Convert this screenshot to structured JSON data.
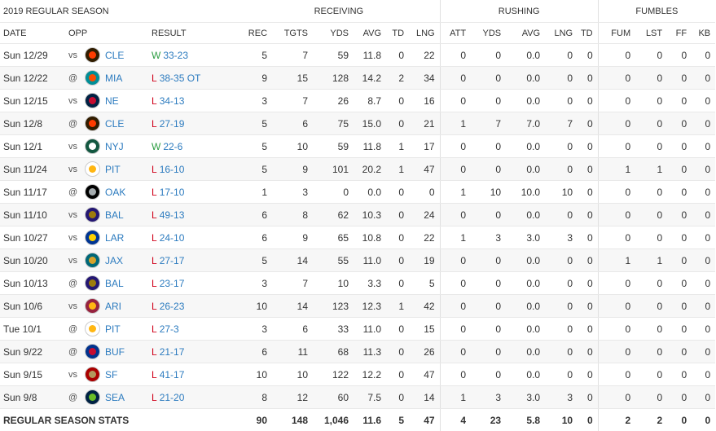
{
  "title": "2019 REGULAR SEASON",
  "groups": {
    "receiving": "RECEIVING",
    "rushing": "RUSHING",
    "fumbles": "FUMBLES"
  },
  "headers": {
    "date": "DATE",
    "opp": "OPP",
    "result": "RESULT",
    "rec": "REC",
    "tgts": "TGTS",
    "rec_yds": "YDS",
    "rec_avg": "AVG",
    "rec_td": "TD",
    "rec_lng": "LNG",
    "att": "ATT",
    "rush_yds": "YDS",
    "rush_avg": "AVG",
    "rush_lng": "LNG",
    "rush_td": "TD",
    "fum": "FUM",
    "lst": "LST",
    "ff": "FF",
    "kb": "KB"
  },
  "colors": {
    "win": "#2f9e44",
    "loss": "#d0021b",
    "link": "#2c7bbf"
  },
  "rows": [
    {
      "date": "Sun 12/29",
      "loc": "vs",
      "opp": "CLE",
      "logo_icon": "browns-logo-icon",
      "c1": "#311d00",
      "c2": "#ff3c00",
      "wl": "W",
      "score": "33-23",
      "rec": "5",
      "tgts": "7",
      "rec_yds": "59",
      "rec_avg": "11.8",
      "rec_td": "0",
      "rec_lng": "22",
      "att": "0",
      "rush_yds": "0",
      "rush_avg": "0.0",
      "rush_lng": "0",
      "rush_td": "0",
      "fum": "0",
      "lst": "0",
      "ff": "0",
      "kb": "0"
    },
    {
      "date": "Sun 12/22",
      "loc": "@",
      "opp": "MIA",
      "logo_icon": "dolphins-logo-icon",
      "c1": "#008e97",
      "c2": "#fc4c02",
      "wl": "L",
      "score": "38-35 OT",
      "rec": "9",
      "tgts": "15",
      "rec_yds": "128",
      "rec_avg": "14.2",
      "rec_td": "2",
      "rec_lng": "34",
      "att": "0",
      "rush_yds": "0",
      "rush_avg": "0.0",
      "rush_lng": "0",
      "rush_td": "0",
      "fum": "0",
      "lst": "0",
      "ff": "0",
      "kb": "0"
    },
    {
      "date": "Sun 12/15",
      "loc": "vs",
      "opp": "NE",
      "logo_icon": "patriots-logo-icon",
      "c1": "#002244",
      "c2": "#c60c30",
      "wl": "L",
      "score": "34-13",
      "rec": "3",
      "tgts": "7",
      "rec_yds": "26",
      "rec_avg": "8.7",
      "rec_td": "0",
      "rec_lng": "16",
      "att": "0",
      "rush_yds": "0",
      "rush_avg": "0.0",
      "rush_lng": "0",
      "rush_td": "0",
      "fum": "0",
      "lst": "0",
      "ff": "0",
      "kb": "0"
    },
    {
      "date": "Sun 12/8",
      "loc": "@",
      "opp": "CLE",
      "logo_icon": "browns-logo-icon",
      "c1": "#311d00",
      "c2": "#ff3c00",
      "wl": "L",
      "score": "27-19",
      "rec": "5",
      "tgts": "6",
      "rec_yds": "75",
      "rec_avg": "15.0",
      "rec_td": "0",
      "rec_lng": "21",
      "att": "1",
      "rush_yds": "7",
      "rush_avg": "7.0",
      "rush_lng": "7",
      "rush_td": "0",
      "fum": "0",
      "lst": "0",
      "ff": "0",
      "kb": "0"
    },
    {
      "date": "Sun 12/1",
      "loc": "vs",
      "opp": "NYJ",
      "logo_icon": "jets-logo-icon",
      "c1": "#125740",
      "c2": "#ffffff",
      "wl": "W",
      "score": "22-6",
      "rec": "5",
      "tgts": "10",
      "rec_yds": "59",
      "rec_avg": "11.8",
      "rec_td": "1",
      "rec_lng": "17",
      "att": "0",
      "rush_yds": "0",
      "rush_avg": "0.0",
      "rush_lng": "0",
      "rush_td": "0",
      "fum": "0",
      "lst": "0",
      "ff": "0",
      "kb": "0"
    },
    {
      "date": "Sun 11/24",
      "loc": "vs",
      "opp": "PIT",
      "logo_icon": "steelers-logo-icon",
      "c1": "#ffffff",
      "c2": "#ffb612",
      "wl": "L",
      "score": "16-10",
      "rec": "5",
      "tgts": "9",
      "rec_yds": "101",
      "rec_avg": "20.2",
      "rec_td": "1",
      "rec_lng": "47",
      "att": "0",
      "rush_yds": "0",
      "rush_avg": "0.0",
      "rush_lng": "0",
      "rush_td": "0",
      "fum": "1",
      "lst": "1",
      "ff": "0",
      "kb": "0"
    },
    {
      "date": "Sun 11/17",
      "loc": "@",
      "opp": "OAK",
      "logo_icon": "raiders-logo-icon",
      "c1": "#000000",
      "c2": "#a5acaf",
      "wl": "L",
      "score": "17-10",
      "rec": "1",
      "tgts": "3",
      "rec_yds": "0",
      "rec_avg": "0.0",
      "rec_td": "0",
      "rec_lng": "0",
      "att": "1",
      "rush_yds": "10",
      "rush_avg": "10.0",
      "rush_lng": "10",
      "rush_td": "0",
      "fum": "0",
      "lst": "0",
      "ff": "0",
      "kb": "0"
    },
    {
      "date": "Sun 11/10",
      "loc": "vs",
      "opp": "BAL",
      "logo_icon": "ravens-logo-icon",
      "c1": "#241773",
      "c2": "#9e7c0c",
      "wl": "L",
      "score": "49-13",
      "rec": "6",
      "tgts": "8",
      "rec_yds": "62",
      "rec_avg": "10.3",
      "rec_td": "0",
      "rec_lng": "24",
      "att": "0",
      "rush_yds": "0",
      "rush_avg": "0.0",
      "rush_lng": "0",
      "rush_td": "0",
      "fum": "0",
      "lst": "0",
      "ff": "0",
      "kb": "0"
    },
    {
      "date": "Sun 10/27",
      "loc": "vs",
      "opp": "LAR",
      "logo_icon": "rams-logo-icon",
      "c1": "#003594",
      "c2": "#ffd100",
      "wl": "L",
      "score": "24-10",
      "rec": "6",
      "tgts": "9",
      "rec_yds": "65",
      "rec_avg": "10.8",
      "rec_td": "0",
      "rec_lng": "22",
      "att": "1",
      "rush_yds": "3",
      "rush_avg": "3.0",
      "rush_lng": "3",
      "rush_td": "0",
      "fum": "0",
      "lst": "0",
      "ff": "0",
      "kb": "0"
    },
    {
      "date": "Sun 10/20",
      "loc": "vs",
      "opp": "JAX",
      "logo_icon": "jaguars-logo-icon",
      "c1": "#006778",
      "c2": "#d7a22a",
      "wl": "L",
      "score": "27-17",
      "rec": "5",
      "tgts": "14",
      "rec_yds": "55",
      "rec_avg": "11.0",
      "rec_td": "0",
      "rec_lng": "19",
      "att": "0",
      "rush_yds": "0",
      "rush_avg": "0.0",
      "rush_lng": "0",
      "rush_td": "0",
      "fum": "1",
      "lst": "1",
      "ff": "0",
      "kb": "0"
    },
    {
      "date": "Sun 10/13",
      "loc": "@",
      "opp": "BAL",
      "logo_icon": "ravens-logo-icon",
      "c1": "#241773",
      "c2": "#9e7c0c",
      "wl": "L",
      "score": "23-17",
      "rec": "3",
      "tgts": "7",
      "rec_yds": "10",
      "rec_avg": "3.3",
      "rec_td": "0",
      "rec_lng": "5",
      "att": "0",
      "rush_yds": "0",
      "rush_avg": "0.0",
      "rush_lng": "0",
      "rush_td": "0",
      "fum": "0",
      "lst": "0",
      "ff": "0",
      "kb": "0"
    },
    {
      "date": "Sun 10/6",
      "loc": "vs",
      "opp": "ARI",
      "logo_icon": "cardinals-logo-icon",
      "c1": "#97233f",
      "c2": "#ffb612",
      "wl": "L",
      "score": "26-23",
      "rec": "10",
      "tgts": "14",
      "rec_yds": "123",
      "rec_avg": "12.3",
      "rec_td": "1",
      "rec_lng": "42",
      "att": "0",
      "rush_yds": "0",
      "rush_avg": "0.0",
      "rush_lng": "0",
      "rush_td": "0",
      "fum": "0",
      "lst": "0",
      "ff": "0",
      "kb": "0"
    },
    {
      "date": "Tue 10/1",
      "loc": "@",
      "opp": "PIT",
      "logo_icon": "steelers-logo-icon",
      "c1": "#ffffff",
      "c2": "#ffb612",
      "wl": "L",
      "score": "27-3",
      "rec": "3",
      "tgts": "6",
      "rec_yds": "33",
      "rec_avg": "11.0",
      "rec_td": "0",
      "rec_lng": "15",
      "att": "0",
      "rush_yds": "0",
      "rush_avg": "0.0",
      "rush_lng": "0",
      "rush_td": "0",
      "fum": "0",
      "lst": "0",
      "ff": "0",
      "kb": "0"
    },
    {
      "date": "Sun 9/22",
      "loc": "@",
      "opp": "BUF",
      "logo_icon": "bills-logo-icon",
      "c1": "#00338d",
      "c2": "#c60c30",
      "wl": "L",
      "score": "21-17",
      "rec": "6",
      "tgts": "11",
      "rec_yds": "68",
      "rec_avg": "11.3",
      "rec_td": "0",
      "rec_lng": "26",
      "att": "0",
      "rush_yds": "0",
      "rush_avg": "0.0",
      "rush_lng": "0",
      "rush_td": "0",
      "fum": "0",
      "lst": "0",
      "ff": "0",
      "kb": "0"
    },
    {
      "date": "Sun 9/15",
      "loc": "vs",
      "opp": "SF",
      "logo_icon": "49ers-logo-icon",
      "c1": "#aa0000",
      "c2": "#b3995d",
      "wl": "L",
      "score": "41-17",
      "rec": "10",
      "tgts": "10",
      "rec_yds": "122",
      "rec_avg": "12.2",
      "rec_td": "0",
      "rec_lng": "47",
      "att": "0",
      "rush_yds": "0",
      "rush_avg": "0.0",
      "rush_lng": "0",
      "rush_td": "0",
      "fum": "0",
      "lst": "0",
      "ff": "0",
      "kb": "0"
    },
    {
      "date": "Sun 9/8",
      "loc": "@",
      "opp": "SEA",
      "logo_icon": "seahawks-logo-icon",
      "c1": "#002244",
      "c2": "#69be28",
      "wl": "L",
      "score": "21-20",
      "rec": "8",
      "tgts": "12",
      "rec_yds": "60",
      "rec_avg": "7.5",
      "rec_td": "0",
      "rec_lng": "14",
      "att": "1",
      "rush_yds": "3",
      "rush_avg": "3.0",
      "rush_lng": "3",
      "rush_td": "0",
      "fum": "0",
      "lst": "0",
      "ff": "0",
      "kb": "0"
    }
  ],
  "totals": {
    "label": "REGULAR SEASON STATS",
    "rec": "90",
    "tgts": "148",
    "rec_yds": "1,046",
    "rec_avg": "11.6",
    "rec_td": "5",
    "rec_lng": "47",
    "att": "4",
    "rush_yds": "23",
    "rush_avg": "5.8",
    "rush_lng": "10",
    "rush_td": "0",
    "fum": "2",
    "lst": "2",
    "ff": "0",
    "kb": "0"
  }
}
